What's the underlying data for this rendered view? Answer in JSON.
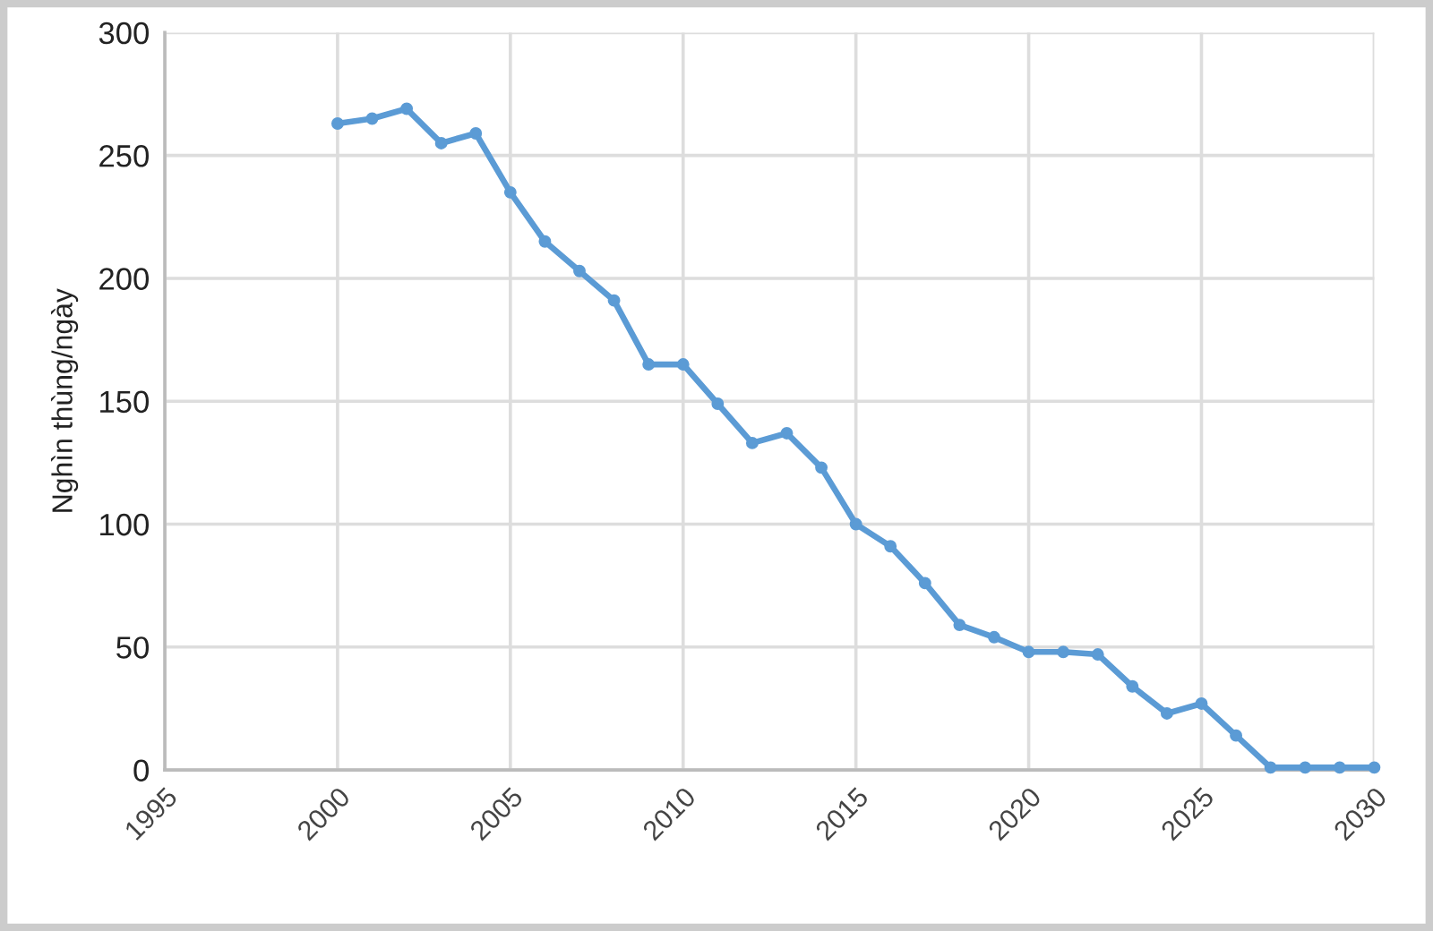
{
  "chart_data": {
    "type": "line",
    "ylabel": "Nghìn thùng/ngày",
    "x": [
      2000,
      2001,
      2002,
      2003,
      2004,
      2005,
      2006,
      2007,
      2008,
      2009,
      2010,
      2011,
      2012,
      2013,
      2014,
      2015,
      2016,
      2017,
      2018,
      2019,
      2020,
      2021,
      2022,
      2023,
      2024,
      2025,
      2026,
      2027,
      2028,
      2029,
      2030
    ],
    "series": [
      {
        "color": "#5b9bd5",
        "values": [
          263,
          265,
          269,
          255,
          259,
          235,
          215,
          203,
          191,
          165,
          165,
          149,
          133,
          137,
          123,
          100,
          91,
          76,
          59,
          54,
          48,
          48,
          47,
          34,
          23,
          27,
          14,
          1,
          1,
          1,
          1
        ]
      }
    ],
    "xlim": [
      1995,
      2030
    ],
    "ylim": [
      0,
      300
    ],
    "xticks": [
      1995,
      2000,
      2005,
      2010,
      2015,
      2020,
      2025,
      2030
    ],
    "yticks": [
      0,
      50,
      100,
      150,
      200,
      250,
      300
    ],
    "grid": true,
    "marker": "circle",
    "line_style": "solid"
  }
}
